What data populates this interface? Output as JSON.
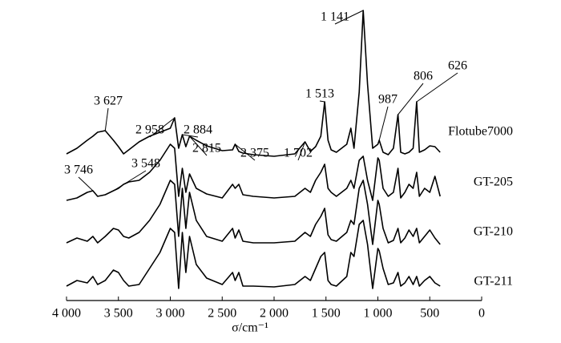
{
  "chart_data": {
    "type": "line",
    "xlabel": "σ/cm⁻¹",
    "xlim": [
      4000,
      0
    ],
    "xticks": [
      {
        "value": 4000,
        "label": "4 000"
      },
      {
        "value": 3500,
        "label": "3 500"
      },
      {
        "value": 3000,
        "label": "3 000"
      },
      {
        "value": 2500,
        "label": "2 500"
      },
      {
        "value": 2000,
        "label": "2 000"
      },
      {
        "value": 1500,
        "label": "1 500"
      },
      {
        "value": 1000,
        "label": "1 000"
      },
      500,
      0
    ],
    "ylim": [
      0,
      375
    ],
    "x": [
      4000,
      3900,
      3800,
      3746,
      3700,
      3627,
      3548,
      3500,
      3450,
      3400,
      3300,
      3200,
      3100,
      3000,
      2958,
      2920,
      2884,
      2850,
      2815,
      2750,
      2650,
      2500,
      2400,
      2375,
      2340,
      2300,
      2200,
      2000,
      1800,
      1702,
      1650,
      1600,
      1550,
      1513,
      1480,
      1450,
      1400,
      1300,
      1260,
      1230,
      1180,
      1141,
      1100,
      1050,
      1000,
      987,
      950,
      900,
      850,
      806,
      780,
      740,
      700,
      660,
      626,
      600,
      550,
      500,
      450,
      400
    ],
    "series": [
      {
        "name": "Flotube7000",
        "color": "#000000",
        "values": [
          183,
          190,
          200,
          205,
          210,
          212,
          200,
          192,
          183,
          188,
          198,
          205,
          210,
          215,
          228,
          190,
          207,
          192,
          205,
          200,
          193,
          187,
          188,
          195,
          186,
          184,
          182,
          180,
          183,
          198,
          186,
          192,
          205,
          248,
          200,
          188,
          185,
          195,
          215,
          190,
          260,
          362,
          270,
          190,
          195,
          200,
          185,
          182,
          190,
          232,
          185,
          183,
          185,
          190,
          248,
          185,
          188,
          193,
          192,
          185
        ]
      },
      {
        "name": "GT-205",
        "color": "#000000",
        "values": [
          125,
          128,
          135,
          137,
          130,
          132,
          137,
          140,
          145,
          148,
          150,
          160,
          175,
          195,
          190,
          130,
          165,
          135,
          158,
          140,
          133,
          128,
          145,
          140,
          145,
          132,
          130,
          128,
          130,
          140,
          135,
          150,
          160,
          170,
          140,
          135,
          130,
          140,
          150,
          140,
          175,
          180,
          150,
          125,
          178,
          175,
          140,
          130,
          135,
          165,
          128,
          135,
          145,
          140,
          160,
          130,
          140,
          135,
          155,
          130
        ]
      },
      {
        "name": "GT-210",
        "color": "#000000",
        "values": [
          72,
          78,
          74,
          80,
          72,
          80,
          90,
          88,
          80,
          78,
          85,
          100,
          120,
          150,
          145,
          80,
          140,
          90,
          135,
          100,
          80,
          74,
          90,
          78,
          88,
          74,
          72,
          72,
          74,
          85,
          80,
          95,
          105,
          115,
          82,
          76,
          74,
          85,
          100,
          95,
          140,
          150,
          120,
          70,
          125,
          120,
          90,
          72,
          75,
          90,
          72,
          78,
          88,
          80,
          90,
          72,
          80,
          88,
          78,
          70
        ]
      },
      {
        "name": "GT-211",
        "color": "#000000",
        "values": [
          18,
          25,
          22,
          30,
          20,
          25,
          38,
          35,
          25,
          18,
          20,
          40,
          60,
          90,
          85,
          15,
          85,
          35,
          80,
          45,
          28,
          20,
          35,
          25,
          35,
          18,
          18,
          17,
          20,
          30,
          25,
          40,
          55,
          60,
          25,
          20,
          18,
          30,
          60,
          55,
          95,
          100,
          70,
          15,
          65,
          62,
          40,
          20,
          22,
          35,
          18,
          22,
          30,
          20,
          30,
          18,
          25,
          30,
          22,
          18
        ]
      }
    ],
    "annotations": [
      {
        "text": "3 627",
        "x": 3627,
        "series": 0
      },
      {
        "text": "2 958",
        "x": 2958,
        "series": 0
      },
      {
        "text": "2 884",
        "x": 2884,
        "series": 0
      },
      {
        "text": "2 815",
        "x": 2815,
        "series": 0
      },
      {
        "text": "2 375",
        "x": 2375,
        "series": 0
      },
      {
        "text": "1 702",
        "x": 1702,
        "series": 0
      },
      {
        "text": "1 513",
        "x": 1513,
        "series": 0
      },
      {
        "text": "1 141",
        "x": 1141,
        "series": 0
      },
      {
        "text": "987",
        "x": 987,
        "series": 0
      },
      {
        "text": "806",
        "x": 806,
        "series": 0
      },
      {
        "text": "626",
        "x": 626,
        "series": 0
      },
      {
        "text": "3 746",
        "x": 3746,
        "series": 1
      },
      {
        "text": "3 548",
        "x": 3548,
        "series": 1
      }
    ]
  }
}
